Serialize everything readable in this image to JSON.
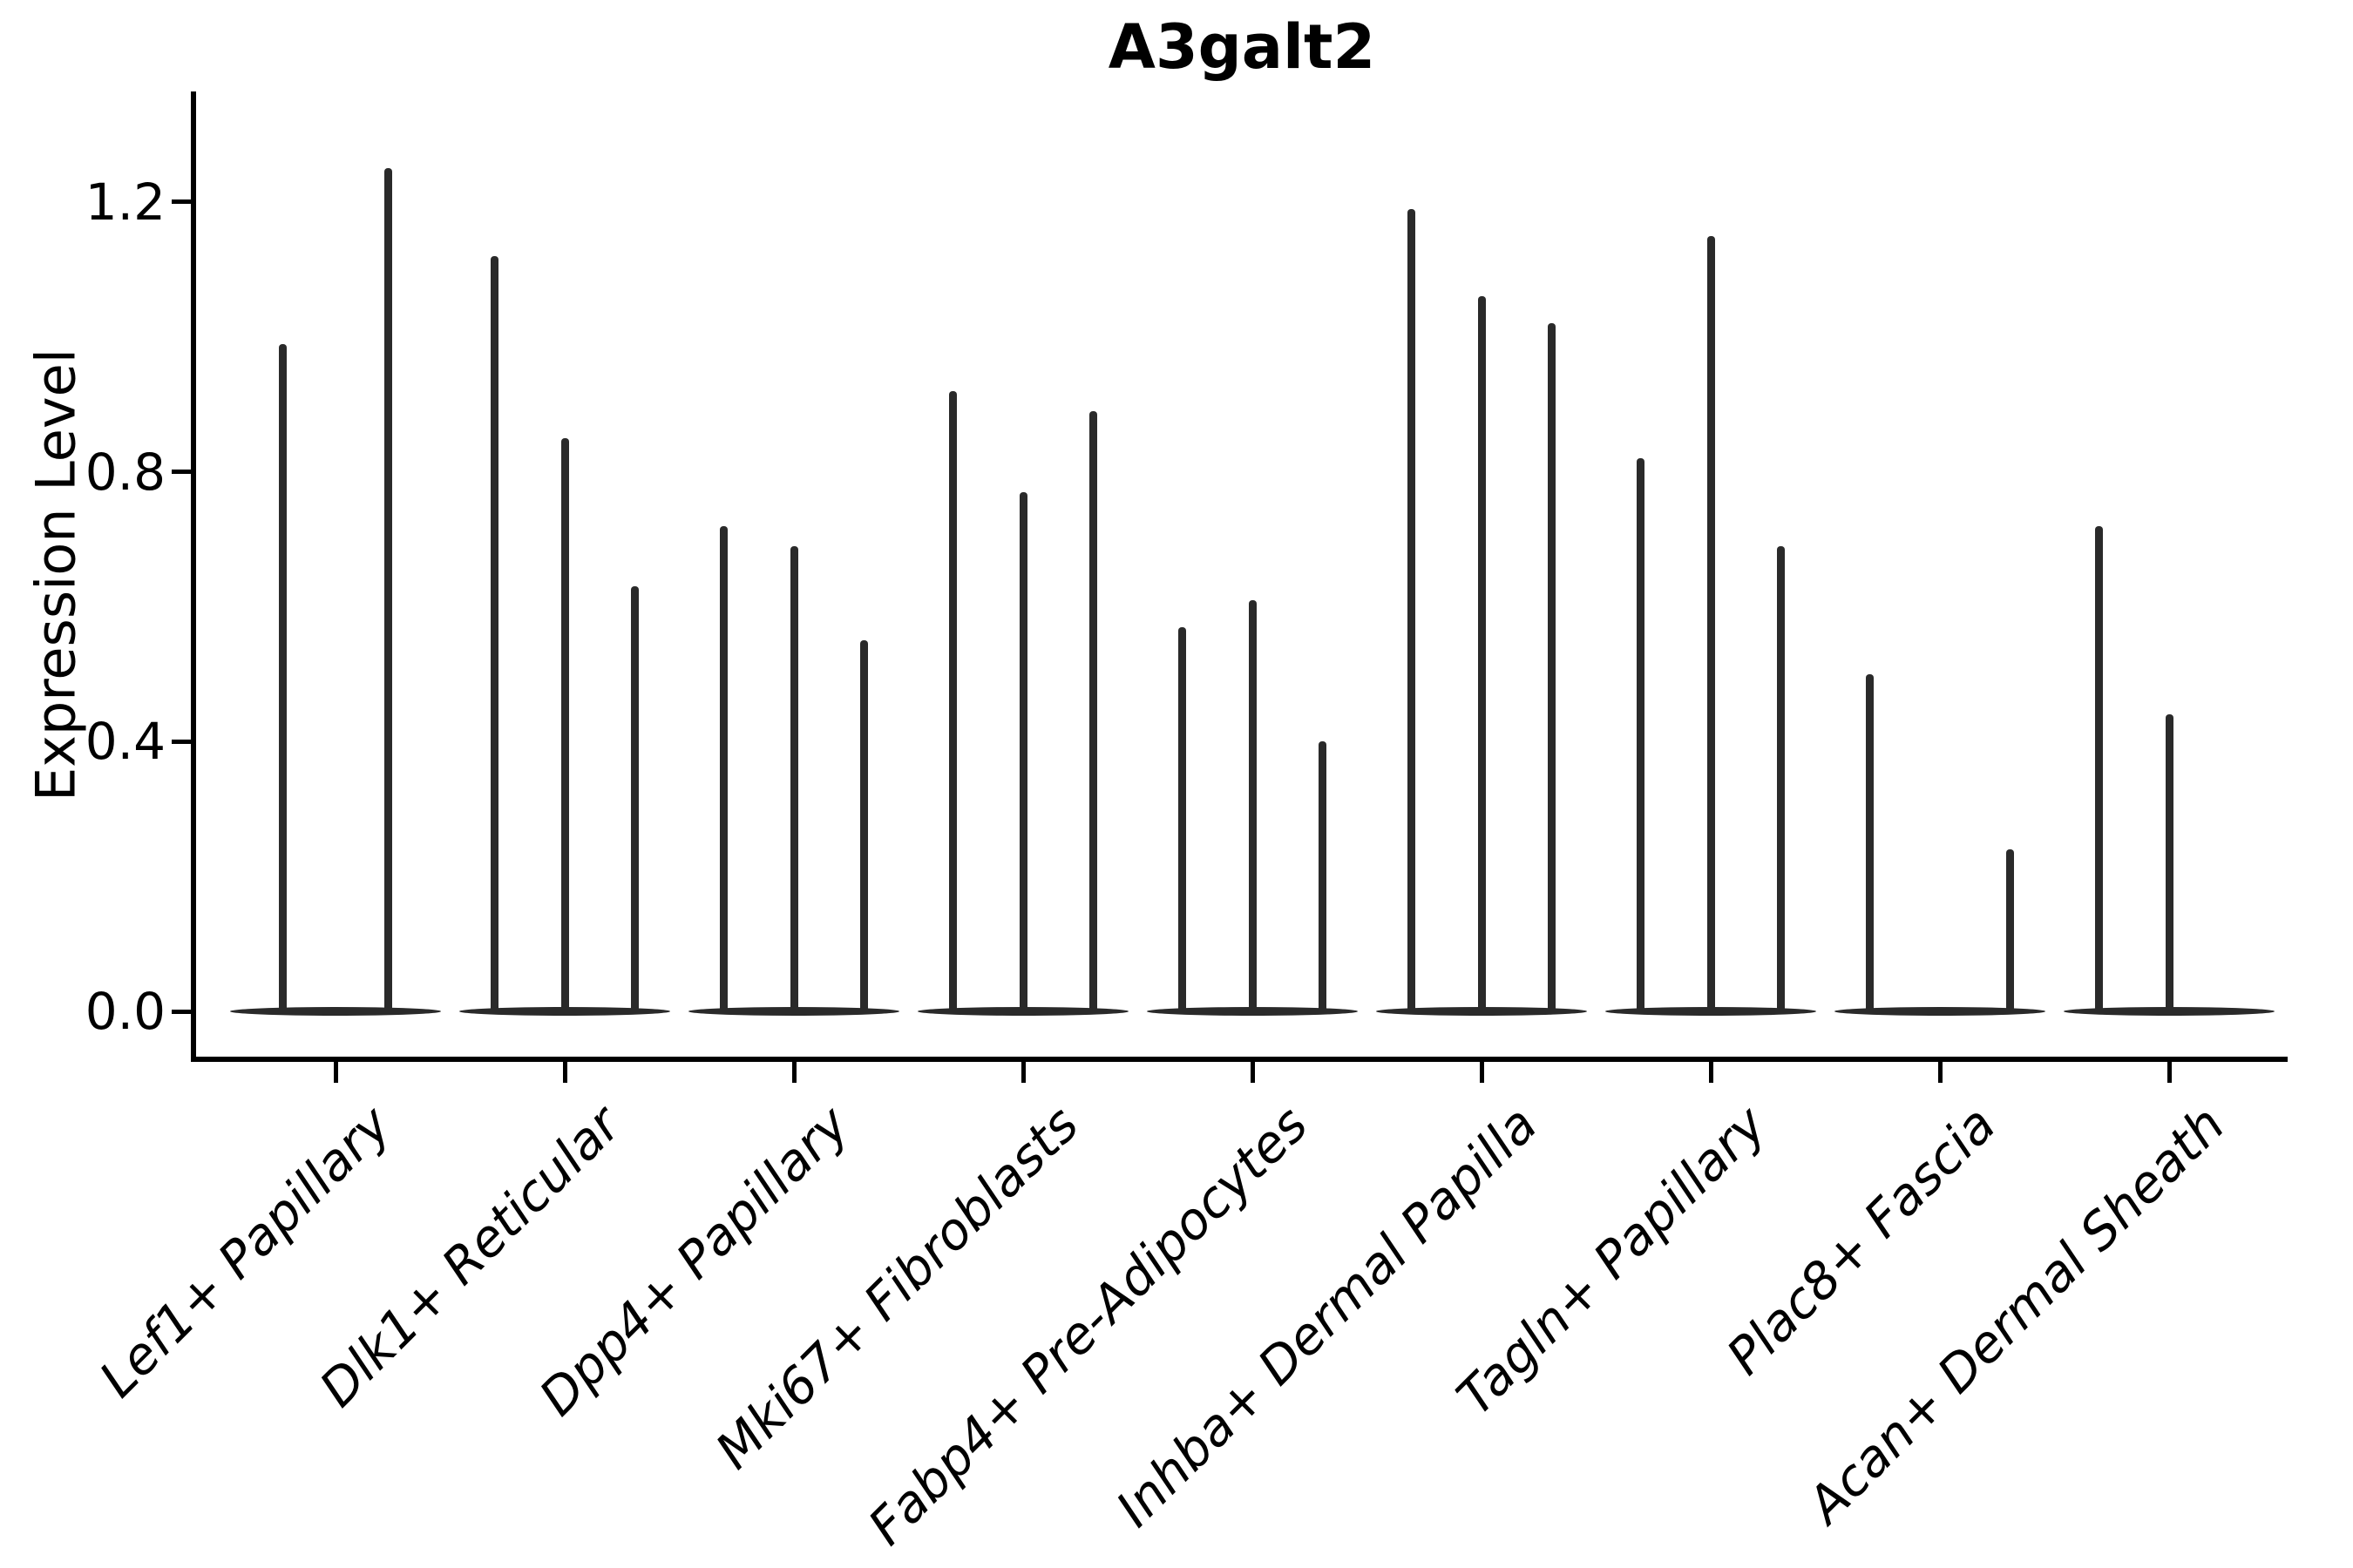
{
  "chart_data": {
    "type": "violin",
    "title": "A3galt2",
    "ylabel": "Expression Level",
    "xlabel": "",
    "yticks": [
      "0.0",
      "0.4",
      "0.8",
      "1.2"
    ],
    "ytick_values": [
      0.0,
      0.4,
      0.8,
      1.2
    ],
    "ylim": [
      -0.067,
      1.364
    ],
    "grid": false,
    "legend_position": "none",
    "categories": [
      {
        "label": "Lef1+ Papillary",
        "violin_max": [
          0.99,
          1.25
        ]
      },
      {
        "label": "Dlk1+ Reticular",
        "violin_max": [
          1.12,
          0.85,
          0.63
        ]
      },
      {
        "label": "Dpp4+ Papillary",
        "violin_max": [
          0.72,
          0.69,
          0.55
        ]
      },
      {
        "label": "Mki67+ Fibroblasts",
        "violin_max": [
          0.92,
          0.77,
          0.89
        ]
      },
      {
        "label": "Fabp4+ Pre-Adipocytes",
        "violin_max": [
          0.57,
          0.61,
          0.4
        ]
      },
      {
        "label": "Inhba+ Dermal Papilla",
        "violin_max": [
          1.19,
          1.06,
          1.02
        ]
      },
      {
        "label": "Tagln+ Papillary",
        "violin_max": [
          0.82,
          1.15,
          0.69
        ]
      },
      {
        "label": "Plac8+ Fascia",
        "violin_max": [
          0.5,
          0.0,
          0.24
        ]
      },
      {
        "label": "Acan+ Dermal Sheath",
        "violin_max": [
          0.72,
          0.44,
          0.0
        ]
      }
    ],
    "colors": {
      "violin": "#2a2a2a",
      "axis": "#000000",
      "text": "#000000"
    }
  }
}
